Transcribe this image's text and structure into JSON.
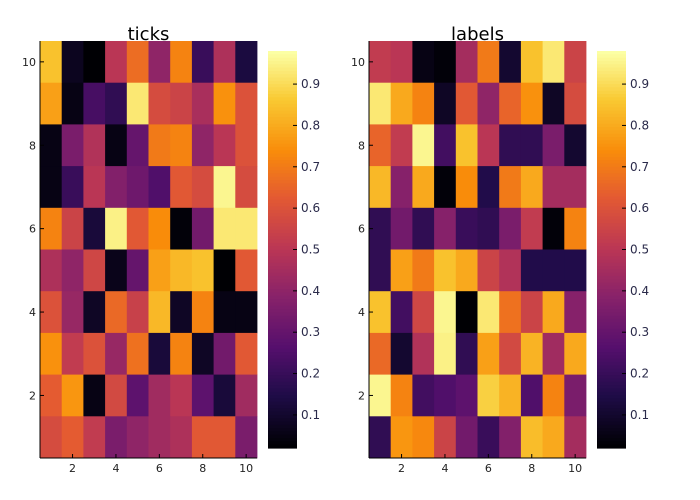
{
  "chart_data": [
    {
      "type": "heatmap",
      "title": "ticks",
      "colormap": "inferno",
      "x_ticks": [
        2,
        4,
        6,
        8,
        10
      ],
      "y_ticks": [
        2,
        4,
        6,
        8,
        10
      ],
      "xlim": [
        0.5,
        10.5
      ],
      "ylim": [
        0.5,
        10.5
      ],
      "colorbar_ticks": [
        "0.1",
        "0.2",
        "0.3",
        "0.4",
        "0.5",
        "0.6",
        "0.7",
        "0.8",
        "0.9"
      ],
      "colorbar_range": [
        0.02,
        0.98
      ],
      "z_rows_top_to_bottom": [
        [
          0.85,
          0.07,
          0.02,
          0.5,
          0.67,
          0.4,
          0.72,
          0.2,
          0.47,
          0.13
        ],
        [
          0.78,
          0.05,
          0.23,
          0.18,
          0.93,
          0.58,
          0.55,
          0.46,
          0.75,
          0.6
        ],
        [
          0.05,
          0.35,
          0.48,
          0.05,
          0.3,
          0.7,
          0.72,
          0.4,
          0.5,
          0.6
        ],
        [
          0.05,
          0.2,
          0.5,
          0.37,
          0.32,
          0.25,
          0.62,
          0.58,
          0.96,
          0.58
        ],
        [
          0.72,
          0.55,
          0.12,
          0.95,
          0.62,
          0.74,
          0.03,
          0.33,
          0.93,
          0.93
        ],
        [
          0.47,
          0.4,
          0.56,
          0.06,
          0.3,
          0.78,
          0.83,
          0.85,
          0.02,
          0.62
        ],
        [
          0.6,
          0.42,
          0.08,
          0.66,
          0.54,
          0.83,
          0.08,
          0.72,
          0.05,
          0.05
        ],
        [
          0.75,
          0.52,
          0.6,
          0.42,
          0.68,
          0.12,
          0.72,
          0.08,
          0.33,
          0.62
        ],
        [
          0.63,
          0.76,
          0.05,
          0.57,
          0.28,
          0.44,
          0.5,
          0.28,
          0.12,
          0.44
        ],
        [
          0.58,
          0.63,
          0.52,
          0.35,
          0.4,
          0.44,
          0.47,
          0.62,
          0.62,
          0.35
        ]
      ]
    },
    {
      "type": "heatmap",
      "title": "labels",
      "colormap": "inferno",
      "x_ticks": [
        2,
        4,
        6,
        8,
        10
      ],
      "y_ticks": [
        2,
        4,
        6,
        8,
        10
      ],
      "xlim": [
        0.5,
        10.5
      ],
      "ylim": [
        0.5,
        10.5
      ],
      "colorbar_ticks": [
        "0.1",
        "0.2",
        "0.3",
        "0.4",
        "0.5",
        "0.6",
        "0.7",
        "0.8",
        "0.9"
      ],
      "colorbar_range": [
        0.02,
        0.98
      ],
      "z_rows_top_to_bottom": [
        [
          0.52,
          0.5,
          0.05,
          0.03,
          0.45,
          0.7,
          0.1,
          0.85,
          0.93,
          0.55
        ],
        [
          0.93,
          0.8,
          0.72,
          0.08,
          0.62,
          0.4,
          0.65,
          0.75,
          0.08,
          0.58
        ],
        [
          0.65,
          0.52,
          0.96,
          0.22,
          0.85,
          0.5,
          0.18,
          0.18,
          0.35,
          0.1
        ],
        [
          0.83,
          0.38,
          0.8,
          0.03,
          0.74,
          0.15,
          0.7,
          0.8,
          0.45,
          0.45
        ],
        [
          0.18,
          0.33,
          0.18,
          0.38,
          0.2,
          0.18,
          0.35,
          0.52,
          0.03,
          0.72
        ],
        [
          0.18,
          0.78,
          0.7,
          0.85,
          0.8,
          0.55,
          0.48,
          0.15,
          0.15,
          0.15
        ],
        [
          0.85,
          0.22,
          0.56,
          0.96,
          0.01,
          0.93,
          0.68,
          0.55,
          0.8,
          0.38
        ],
        [
          0.66,
          0.1,
          0.48,
          0.95,
          0.18,
          0.78,
          0.57,
          0.82,
          0.44,
          0.8
        ],
        [
          0.96,
          0.72,
          0.22,
          0.25,
          0.28,
          0.88,
          0.82,
          0.25,
          0.72,
          0.35
        ],
        [
          0.18,
          0.76,
          0.73,
          0.55,
          0.33,
          0.2,
          0.37,
          0.84,
          0.8,
          0.45
        ]
      ]
    }
  ]
}
